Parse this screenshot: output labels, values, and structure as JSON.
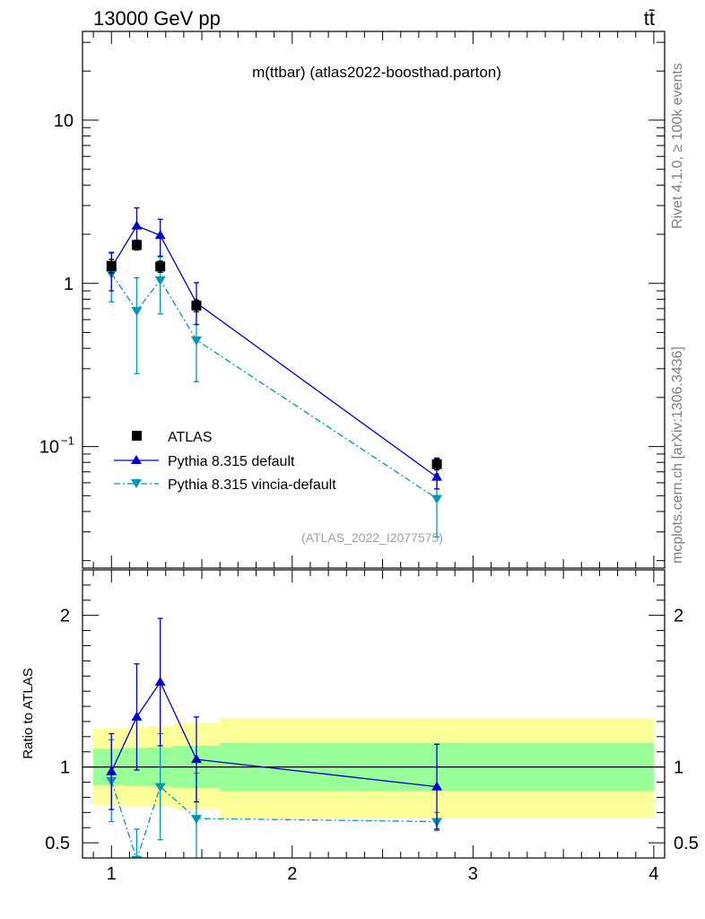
{
  "header": {
    "energy_label": "13000 GeV pp",
    "process_label": "tt̄",
    "title": "m(ttbar) (atlas2022-boosthad.parton)",
    "analysis_id": "(ATLAS_2022_I2077575)"
  },
  "side_labels": {
    "rivet": "Rivet 4.1.0, ≥ 100k events",
    "mcplots": "mcplots.cern.ch [arXiv:1306.3436]"
  },
  "legend": {
    "atlas": "ATLAS",
    "pythia_default": "Pythia 8.315 default",
    "pythia_vincia": "Pythia 8.315 vincia-default"
  },
  "colors": {
    "data": "#000000",
    "default": "#0000cc",
    "vincia": "#0097b2",
    "band_inner": "#99ff99",
    "band_outer": "#ffff99"
  },
  "chart_data": [
    {
      "type": "scatter",
      "panel": "main",
      "title": "m(ttbar) (atlas2022-boosthad.parton)",
      "yscale": "log",
      "xlim": [
        0.84,
        4.06
      ],
      "ylim": [
        0.018,
        35
      ],
      "yticks": [
        {
          "value": 0.1,
          "base": "10",
          "exp": "−1"
        },
        {
          "value": 1,
          "text": "1"
        },
        {
          "value": 10,
          "text": "10"
        }
      ],
      "series": [
        {
          "name": "ATLAS",
          "x": [
            1.0,
            1.14,
            1.27,
            1.47,
            2.8
          ],
          "y": [
            1.28,
            1.72,
            1.27,
            0.73,
            0.078
          ],
          "yerr_lo": [
            0.12,
            0.12,
            0.1,
            0.06,
            0.006
          ],
          "yerr_hi": [
            0.12,
            0.12,
            0.1,
            0.06,
            0.006
          ]
        },
        {
          "name": "Pythia 8.315 default",
          "x": [
            1.0,
            1.14,
            1.27,
            1.47,
            2.8
          ],
          "y": [
            1.25,
            2.25,
            1.97,
            0.76,
            0.065
          ],
          "yerr_lo": [
            0.35,
            0.55,
            0.5,
            0.2,
            0.01
          ],
          "yerr_hi": [
            0.3,
            0.65,
            0.5,
            0.25,
            0.02
          ]
        },
        {
          "name": "Pythia 8.315 vincia-default",
          "x": [
            1.0,
            1.14,
            1.27,
            1.47,
            2.8
          ],
          "y": [
            1.15,
            0.68,
            1.05,
            0.45,
            0.048
          ],
          "yerr_lo": [
            0.38,
            0.4,
            0.4,
            0.2,
            0.02
          ],
          "yerr_hi": [
            0.38,
            0.4,
            0.4,
            0.25,
            0.02
          ]
        }
      ]
    },
    {
      "type": "scatter",
      "panel": "ratio",
      "ylabel": "Ratio to ATLAS",
      "xlim": [
        0.84,
        4.06
      ],
      "ylim": [
        0.4,
        2.3
      ],
      "xticks": [
        1,
        2,
        3,
        4
      ],
      "yticks": [
        0.5,
        1,
        2
      ],
      "bands": [
        {
          "x0": 0.9,
          "x1": 1.07,
          "inner": [
            0.88,
            1.12
          ],
          "outer": [
            0.75,
            1.25
          ]
        },
        {
          "x0": 1.07,
          "x1": 1.2,
          "inner": [
            0.875,
            1.125
          ],
          "outer": [
            0.74,
            1.26
          ]
        },
        {
          "x0": 1.2,
          "x1": 1.34,
          "inner": [
            0.87,
            1.13
          ],
          "outer": [
            0.74,
            1.27
          ]
        },
        {
          "x0": 1.34,
          "x1": 1.6,
          "inner": [
            0.86,
            1.14
          ],
          "outer": [
            0.72,
            1.29
          ]
        },
        {
          "x0": 1.6,
          "x1": 4.0,
          "inner": [
            0.84,
            1.16
          ],
          "outer": [
            0.66,
            1.32
          ]
        }
      ],
      "series": [
        {
          "name": "Pythia 8.315 default",
          "x": [
            1.0,
            1.14,
            1.27,
            1.47,
            2.8
          ],
          "y": [
            0.97,
            1.33,
            1.56,
            1.05,
            0.87
          ],
          "yerr_lo": [
            0.25,
            0.35,
            0.42,
            0.28,
            0.28
          ],
          "yerr_hi": [
            0.25,
            0.35,
            0.42,
            0.28,
            0.28
          ]
        },
        {
          "name": "Pythia 8.315 vincia-default",
          "x": [
            1.0,
            1.14,
            1.27,
            1.47,
            2.8
          ],
          "y": [
            0.91,
            0.39,
            0.87,
            0.66,
            0.64
          ],
          "yerr_lo": [
            0.27,
            0.2,
            0.35,
            0.3,
            0.06
          ],
          "yerr_hi": [
            0.27,
            0.2,
            0.35,
            0.3,
            0.06
          ]
        }
      ]
    }
  ]
}
